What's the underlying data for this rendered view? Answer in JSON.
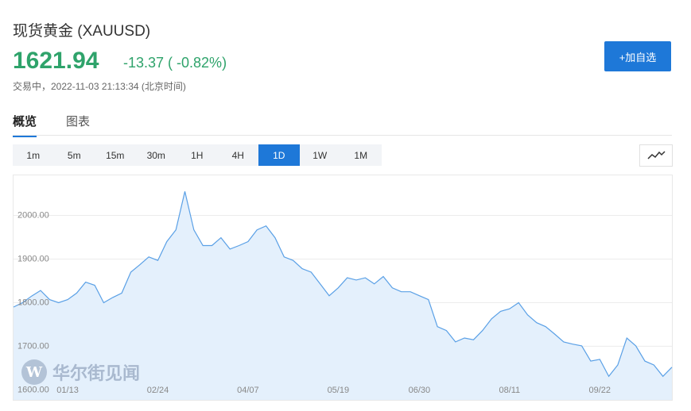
{
  "header": {
    "title": "现货黄金 (XAUUSD)",
    "price": "1621.94",
    "change": "-13.37 ( -0.82%)",
    "status": "交易中，2022-11-03 21:13:34 (北京时间)",
    "button": "+加自选"
  },
  "tabs": [
    "概览",
    "图表"
  ],
  "intervals": [
    "1m",
    "5m",
    "15m",
    "30m",
    "1H",
    "4H",
    "1D",
    "1W",
    "1M"
  ],
  "active_interval": 6,
  "watermark": "华尔街见闻",
  "chart_data": {
    "type": "area",
    "color": "#5aa0e6",
    "fill": "#e4f0fc",
    "grid": true,
    "categories": [
      null,
      null,
      null,
      null,
      null,
      null,
      "01/13",
      null,
      null,
      null,
      null,
      null,
      null,
      null,
      null,
      null,
      "02/24",
      null,
      null,
      null,
      null,
      null,
      null,
      null,
      null,
      null,
      "04/07",
      null,
      null,
      null,
      null,
      null,
      null,
      null,
      null,
      null,
      "05/19",
      null,
      null,
      null,
      null,
      null,
      null,
      null,
      null,
      "06/30",
      null,
      null,
      null,
      null,
      null,
      null,
      null,
      null,
      null,
      "08/11",
      null,
      null,
      null,
      null,
      null,
      null,
      null,
      null,
      null,
      "09/22",
      null,
      null,
      null,
      null,
      null,
      null,
      null,
      null
    ],
    "values": [
      1790,
      1800,
      1815,
      1828,
      1807,
      1800,
      1807,
      1822,
      1847,
      1840,
      1800,
      1812,
      1822,
      1870,
      1887,
      1905,
      1897,
      1940,
      1967,
      2055,
      1967,
      1931,
      1931,
      1949,
      1923,
      1931,
      1940,
      1967,
      1976,
      1949,
      1905,
      1897,
      1878,
      1870,
      1843,
      1816,
      1834,
      1857,
      1852,
      1857,
      1843,
      1860,
      1834,
      1825,
      1825,
      1816,
      1807,
      1745,
      1736,
      1710,
      1719,
      1715,
      1736,
      1763,
      1780,
      1786,
      1800,
      1772,
      1754,
      1745,
      1728,
      1710,
      1705,
      1701,
      1666,
      1670,
      1631,
      1657,
      1719,
      1701,
      1666,
      1657,
      1631,
      1652
    ],
    "ylim": [
      1577,
      2092
    ],
    "yticks": [
      {
        "value": 1600,
        "label": "1600.00"
      },
      {
        "value": 1700,
        "label": "1700.00"
      },
      {
        "value": 1800,
        "label": "1800.00"
      },
      {
        "value": 1900,
        "label": "1900.00"
      },
      {
        "value": 2000,
        "label": "2000.00"
      }
    ]
  }
}
